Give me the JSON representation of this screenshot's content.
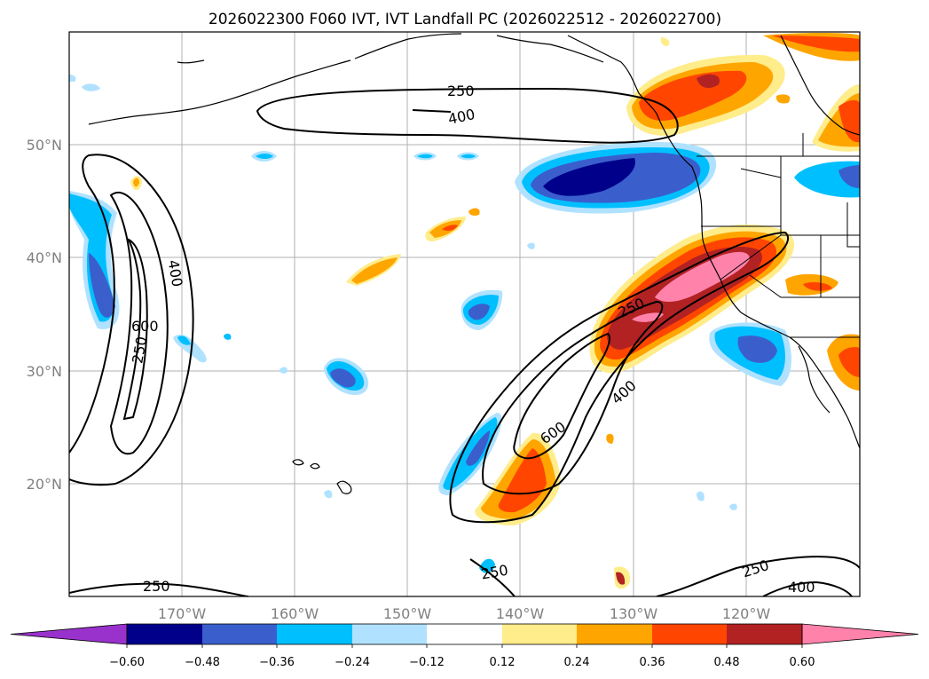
{
  "title": "2026022300 F060 IVT, IVT Landfall PC (2026022512 - 2026022700)",
  "lat_labels": [
    "50°N",
    "40°N",
    "30°N",
    "20°N"
  ],
  "lon_labels": [
    "170°W",
    "160°W",
    "150°W",
    "140°W",
    "130°W",
    "120°W"
  ],
  "colorbar": {
    "ticks": [
      "−0.60",
      "−0.48",
      "−0.36",
      "−0.24",
      "−0.12",
      "0.12",
      "0.24",
      "0.36",
      "0.48",
      "0.60"
    ],
    "colors": [
      "#9932cc",
      "#00008b",
      "#3a5fcd",
      "#00bfff",
      "#b0e2ff",
      "#ffffff",
      "#ffec8b",
      "#ffa500",
      "#ff4500",
      "#b22222",
      "#ff82ab"
    ]
  },
  "contour_labels": {
    "c250_top": "250",
    "c400_top": "400",
    "c400_left": "400",
    "c600_left": "600",
    "c250_left": "250",
    "c250_bottom_left": "250",
    "c250_center": "250",
    "c400_center": "400",
    "c600_center": "600",
    "c250_bottom_center": "250",
    "c250_bottom_right": "250",
    "c400_bottom_right": "400"
  }
}
